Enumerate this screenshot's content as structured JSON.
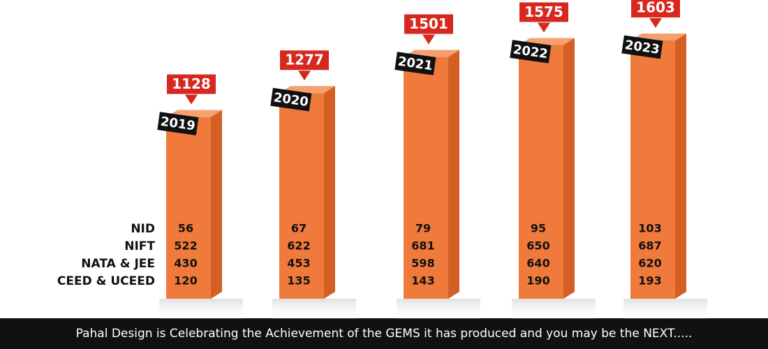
{
  "chart_data": {
    "type": "bar",
    "categories": [
      "2019",
      "2020",
      "2021",
      "2022",
      "2023"
    ],
    "values": [
      1128,
      1277,
      1501,
      1575,
      1603
    ],
    "color": "#f07a3c",
    "label_color": "#d6281e",
    "series": [
      {
        "name": "NID",
        "values": [
          56,
          67,
          79,
          95,
          103
        ]
      },
      {
        "name": "NIFT",
        "values": [
          522,
          622,
          681,
          650,
          687
        ]
      },
      {
        "name": "NATA & JEE",
        "values": [
          430,
          453,
          598,
          640,
          620
        ]
      },
      {
        "name": "CEED & UCEED",
        "values": [
          120,
          135,
          143,
          190,
          193
        ]
      }
    ]
  },
  "footer": {
    "text": "Pahal Design is Celebrating the Achievement of the GEMS it has produced and you may be the NEXT....."
  }
}
